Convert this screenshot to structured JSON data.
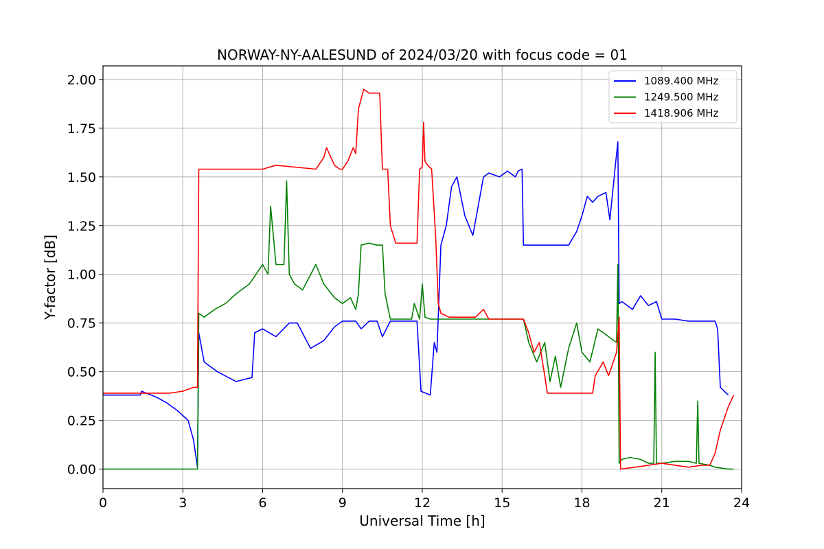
{
  "chart_data": {
    "type": "line",
    "title": "NORWAY-NY-AALESUND of 2024/03/20 with focus code = 01",
    "xlabel": "Universal Time [h]",
    "ylabel": "Y-factor [dB]",
    "xlim": [
      0,
      24
    ],
    "ylim": [
      -0.1,
      2.07
    ],
    "xticks": [
      0,
      3,
      6,
      9,
      12,
      15,
      18,
      21,
      24
    ],
    "yticks": [
      0.0,
      0.25,
      0.5,
      0.75,
      1.0,
      1.25,
      1.5,
      1.75,
      2.0
    ],
    "ytick_labels": [
      "0.00",
      "0.25",
      "0.50",
      "0.75",
      "1.00",
      "1.25",
      "1.50",
      "1.75",
      "2.00"
    ],
    "grid": true,
    "legend_position": "top-right",
    "series": [
      {
        "name": "1089.400 MHz",
        "color": "#0000ff",
        "x": [
          0,
          1.4,
          1.45,
          2.0,
          2.4,
          2.8,
          3.2,
          3.4,
          3.55,
          3.6,
          3.8,
          4.3,
          5.0,
          5.6,
          5.7,
          6.0,
          6.5,
          7.0,
          7.3,
          7.8,
          8.3,
          8.7,
          9.0,
          9.5,
          9.7,
          10.0,
          10.3,
          10.5,
          10.8,
          11.2,
          11.6,
          11.8,
          11.95,
          12.3,
          12.45,
          12.55,
          12.7,
          12.9,
          13.1,
          13.3,
          13.6,
          13.9,
          14.1,
          14.3,
          14.5,
          14.9,
          15.2,
          15.5,
          15.6,
          15.75,
          15.8,
          16.2,
          16.7,
          17.2,
          17.5,
          17.8,
          18.0,
          18.2,
          18.4,
          18.6,
          18.9,
          19.05,
          19.25,
          19.35,
          19.4,
          19.5,
          19.9,
          20.2,
          20.5,
          20.8,
          21.0,
          21.2,
          21.5,
          22.0,
          22.5,
          23.0,
          23.1,
          23.2,
          23.5
        ],
        "y": [
          0.38,
          0.38,
          0.4,
          0.37,
          0.34,
          0.3,
          0.25,
          0.15,
          0.01,
          0.7,
          0.55,
          0.5,
          0.45,
          0.47,
          0.7,
          0.72,
          0.68,
          0.75,
          0.75,
          0.62,
          0.66,
          0.73,
          0.76,
          0.76,
          0.72,
          0.76,
          0.76,
          0.68,
          0.76,
          0.76,
          0.76,
          0.76,
          0.4,
          0.38,
          0.65,
          0.6,
          1.15,
          1.25,
          1.45,
          1.5,
          1.3,
          1.2,
          1.35,
          1.5,
          1.52,
          1.5,
          1.53,
          1.5,
          1.53,
          1.54,
          1.15,
          1.15,
          1.15,
          1.15,
          1.15,
          1.22,
          1.3,
          1.4,
          1.37,
          1.4,
          1.42,
          1.28,
          1.55,
          1.68,
          0.85,
          0.86,
          0.82,
          0.89,
          0.84,
          0.86,
          0.77,
          0.77,
          0.77,
          0.76,
          0.76,
          0.76,
          0.72,
          0.42,
          0.38
        ]
      },
      {
        "name": "1249.500 MHz",
        "color": "#008000",
        "x": [
          0,
          3.55,
          3.6,
          3.8,
          4.2,
          4.6,
          5.0,
          5.5,
          6.0,
          6.2,
          6.3,
          6.5,
          6.8,
          6.9,
          7.0,
          7.2,
          7.5,
          8.0,
          8.3,
          8.7,
          9.0,
          9.3,
          9.5,
          9.6,
          9.7,
          10.0,
          10.3,
          10.5,
          10.6,
          10.8,
          11.2,
          11.6,
          11.7,
          11.9,
          12.0,
          12.1,
          12.3,
          12.6,
          13.0,
          14.0,
          15.0,
          15.7,
          15.8,
          16.0,
          16.3,
          16.6,
          16.8,
          17.0,
          17.2,
          17.5,
          17.8,
          18.0,
          18.3,
          18.6,
          19.0,
          19.3,
          19.35,
          19.4,
          19.5,
          19.8,
          20.2,
          20.5,
          20.7,
          20.75,
          20.8,
          21.0,
          21.5,
          22.0,
          22.3,
          22.35,
          22.4,
          22.8,
          23.0,
          23.5,
          23.7
        ],
        "y": [
          0.0,
          0.0,
          0.8,
          0.78,
          0.82,
          0.85,
          0.9,
          0.95,
          1.05,
          1.0,
          1.35,
          1.05,
          1.05,
          1.48,
          1.0,
          0.95,
          0.92,
          1.05,
          0.95,
          0.88,
          0.85,
          0.88,
          0.82,
          0.9,
          1.15,
          1.16,
          1.15,
          1.15,
          0.9,
          0.77,
          0.77,
          0.77,
          0.85,
          0.77,
          0.95,
          0.78,
          0.77,
          0.77,
          0.77,
          0.77,
          0.77,
          0.77,
          0.77,
          0.65,
          0.55,
          0.65,
          0.45,
          0.58,
          0.42,
          0.62,
          0.75,
          0.6,
          0.55,
          0.72,
          0.68,
          0.65,
          1.05,
          0.03,
          0.05,
          0.06,
          0.05,
          0.03,
          0.03,
          0.6,
          0.03,
          0.03,
          0.04,
          0.04,
          0.03,
          0.35,
          0.03,
          0.02,
          0.01,
          0.0,
          0.0
        ]
      },
      {
        "name": "1418.906 MHz",
        "color": "#ff0000",
        "x": [
          0,
          2.5,
          3.0,
          3.4,
          3.55,
          3.6,
          4.0,
          6.0,
          6.5,
          8.0,
          8.3,
          8.4,
          8.7,
          8.9,
          9.0,
          9.2,
          9.4,
          9.5,
          9.6,
          9.8,
          10.0,
          10.4,
          10.5,
          10.7,
          10.8,
          11.0,
          11.8,
          11.9,
          12.0,
          12.05,
          12.1,
          12.2,
          12.35,
          12.5,
          12.6,
          12.7,
          13.0,
          14.0,
          14.3,
          14.5,
          15.0,
          15.7,
          15.8,
          16.0,
          16.2,
          16.4,
          16.6,
          16.7,
          17.0,
          18.0,
          18.4,
          18.5,
          18.8,
          19.0,
          19.3,
          19.4,
          19.45,
          20.0,
          20.5,
          21.0,
          21.5,
          22.0,
          22.5,
          22.8,
          23.0,
          23.2,
          23.5,
          23.7
        ],
        "y": [
          0.39,
          0.39,
          0.4,
          0.42,
          0.42,
          1.54,
          1.54,
          1.54,
          1.56,
          1.54,
          1.6,
          1.65,
          1.56,
          1.54,
          1.54,
          1.58,
          1.65,
          1.62,
          1.85,
          1.95,
          1.93,
          1.93,
          1.54,
          1.54,
          1.25,
          1.16,
          1.16,
          1.54,
          1.55,
          1.78,
          1.58,
          1.56,
          1.54,
          1.2,
          0.85,
          0.8,
          0.78,
          0.78,
          0.82,
          0.77,
          0.77,
          0.77,
          0.77,
          0.7,
          0.6,
          0.65,
          0.48,
          0.39,
          0.39,
          0.39,
          0.39,
          0.48,
          0.55,
          0.48,
          0.6,
          0.78,
          0.0,
          0.01,
          0.02,
          0.03,
          0.02,
          0.01,
          0.02,
          0.02,
          0.08,
          0.2,
          0.32,
          0.38
        ]
      }
    ]
  }
}
